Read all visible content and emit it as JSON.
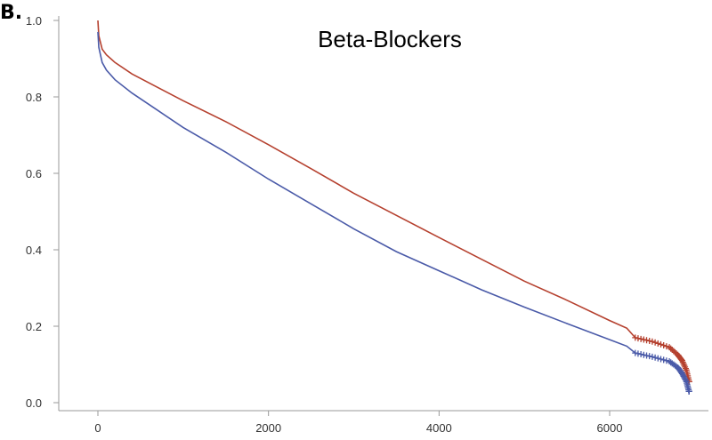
{
  "panel_label": "B.",
  "chart_data": {
    "type": "line",
    "title": "Beta-Blockers",
    "xlabel": "",
    "ylabel": "",
    "xlim": [
      -250,
      7000
    ],
    "ylim": [
      -0.02,
      1.0
    ],
    "x_ticks": [
      0,
      2000,
      4000,
      6000
    ],
    "x_tick_labels": [
      "0",
      "2000",
      "4000",
      "6000"
    ],
    "y_ticks": [
      0.0,
      0.2,
      0.4,
      0.6,
      0.8,
      1.0
    ],
    "y_tick_labels": [
      "0.0",
      "0.2",
      "0.4",
      "0.6",
      "0.8",
      "1.0"
    ],
    "grid": false,
    "legend": "none",
    "series": [
      {
        "color": "#b5402e",
        "x": [
          0,
          10,
          50,
          100,
          200,
          400,
          700,
          1000,
          1500,
          2000,
          2500,
          3000,
          3500,
          4000,
          4500,
          5000,
          5500,
          6000,
          6200,
          6300,
          6500,
          6700,
          6800,
          6850,
          6900,
          6930
        ],
        "y": [
          1.0,
          0.96,
          0.925,
          0.91,
          0.89,
          0.86,
          0.825,
          0.79,
          0.735,
          0.675,
          0.612,
          0.548,
          0.49,
          0.432,
          0.375,
          0.318,
          0.268,
          0.215,
          0.195,
          0.17,
          0.16,
          0.145,
          0.125,
          0.11,
          0.085,
          0.055
        ]
      },
      {
        "color": "#4a5aa8",
        "x": [
          0,
          10,
          50,
          100,
          200,
          400,
          700,
          1000,
          1500,
          2000,
          2500,
          3000,
          3500,
          4000,
          4500,
          5000,
          5500,
          6000,
          6200,
          6300,
          6500,
          6700,
          6800,
          6850,
          6900,
          6930
        ],
        "y": [
          0.97,
          0.93,
          0.89,
          0.87,
          0.845,
          0.81,
          0.765,
          0.72,
          0.655,
          0.585,
          0.52,
          0.455,
          0.395,
          0.345,
          0.295,
          0.25,
          0.207,
          0.165,
          0.148,
          0.13,
          0.12,
          0.108,
          0.092,
          0.076,
          0.055,
          0.03
        ]
      }
    ]
  }
}
